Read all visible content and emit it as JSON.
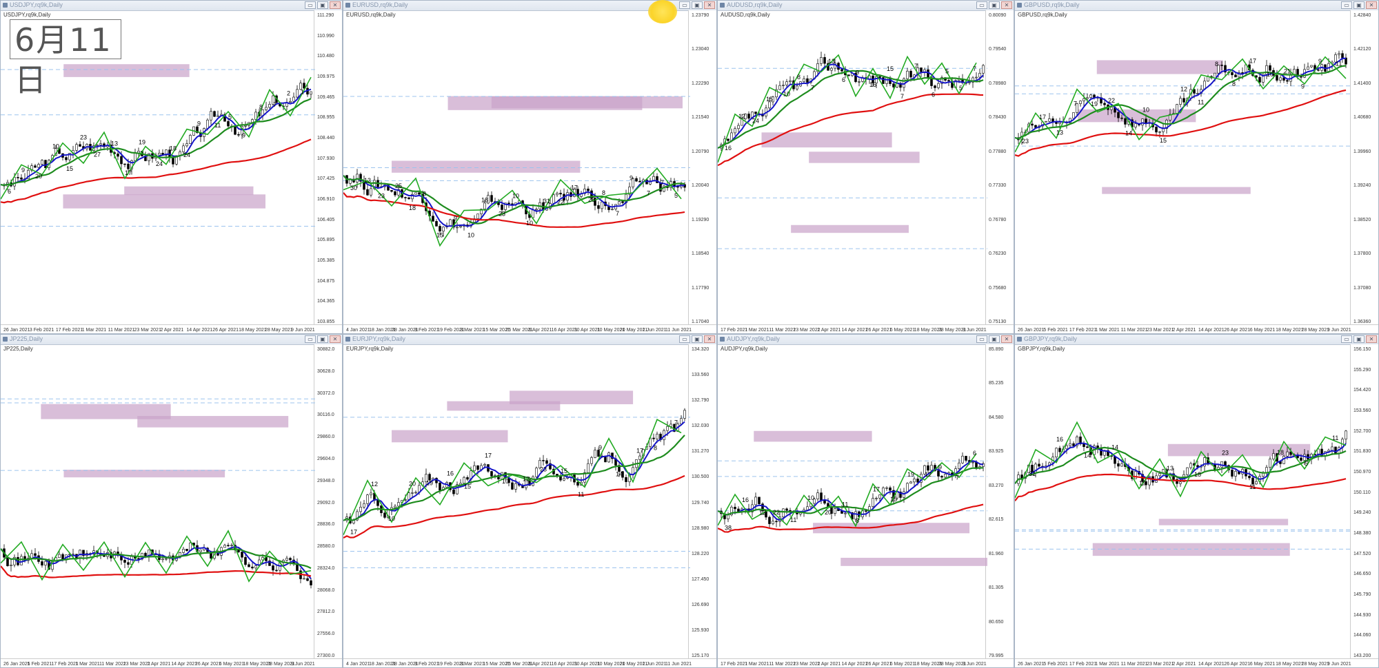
{
  "date_stamp": "6月11日",
  "colors": {
    "ma_fast": "#1414c8",
    "ma_mid": "#1e8c1e",
    "ma_slow": "#e01010",
    "zigzag": "#22aa22",
    "zone": "#c9a3c9",
    "bull": "#ffffff",
    "bear": "#000000"
  },
  "window_buttons": [
    "▭",
    "▣",
    "✕"
  ],
  "charts": [
    {
      "title": "USDJPY,rq9k,Daily",
      "symbol": "USDJPY,rq9k,Daily",
      "dates": [
        "26 Jan 2021",
        "3 Feb 2021",
        "17 Feb 2021",
        "1 Mar 2021",
        "11 Mar 2021",
        "23 Mar 2021",
        "2 Apr 2021",
        "14 Apr 2021",
        "26 Apr 2021",
        "18 May 2021",
        "28 May 2021",
        "9 Jun 2021"
      ],
      "prices": [
        "111.290",
        "110.990",
        "110.480",
        "109.975",
        "109.465",
        "108.955",
        "108.440",
        "107.930",
        "107.425",
        "106.910",
        "106.405",
        "105.895",
        "105.385",
        "104.875",
        "104.365",
        "103.855"
      ],
      "labels": [
        "6",
        "9",
        "20",
        "10",
        "15",
        "23",
        "27",
        "13",
        "17",
        "19",
        "24",
        "18",
        "24",
        "9",
        "11",
        "5",
        "9",
        "8",
        "7",
        "2",
        "1"
      ]
    },
    {
      "title": "EURUSD,rq9k,Daily",
      "symbol": "EURUSD,rq9k,Daily",
      "dates": [
        "4 Jan 2021",
        "18 Jan 2021",
        "28 Jan 2021",
        "9 Feb 2021",
        "19 Feb 2021",
        "3 Mar 2021",
        "15 Mar 2021",
        "25 Mar 2021",
        "6 Apr 2021",
        "16 Apr 2021",
        "30 Apr 2021",
        "10 May 2021",
        "20 May 2021",
        "1 Jun 2021",
        "11 Jun 2021"
      ],
      "prices": [
        "1.23790",
        "1.23040",
        "1.22290",
        "1.21540",
        "1.20790",
        "1.20040",
        "1.19290",
        "1.18540",
        "1.17790",
        "1.17040"
      ],
      "labels": [
        "30",
        "13",
        "23",
        "25",
        "18",
        "8",
        "15",
        "9",
        "10",
        "18",
        "23",
        "10",
        "10",
        "31",
        "22",
        "17",
        "26",
        "8",
        "7",
        "9",
        "7",
        "7",
        "5"
      ]
    },
    {
      "title": "AUDUSD,rq9k,Daily",
      "symbol": "AUDUSD,rq9k,Daily",
      "dates": [
        "17 Feb 2021",
        "1 Mar 2021",
        "11 Mar 2021",
        "23 Mar 2021",
        "2 Apr 2021",
        "14 Apr 2021",
        "26 Apr 2021",
        "6 May 2021",
        "18 May 2021",
        "28 May 2021",
        "9 Jun 2021"
      ],
      "prices": [
        "0.80090",
        "0.79540",
        "0.78980",
        "0.78430",
        "0.77880",
        "0.77330",
        "0.76780",
        "0.76230",
        "0.75680",
        "0.75130"
      ],
      "labels": [
        "16",
        "12",
        "24",
        "15",
        "10",
        "8",
        "7",
        "13",
        "6",
        "9",
        "16",
        "15",
        "7",
        "7",
        "6",
        "5",
        "5",
        "7"
      ]
    },
    {
      "title": "GBPUSD,rq9k,Daily",
      "symbol": "GBPUSD,rq9k,Daily",
      "dates": [
        "26 Jan 2021",
        "5 Feb 2021",
        "17 Feb 2021",
        "1 Mar 2021",
        "11 Mar 2021",
        "23 Mar 2021",
        "2 Apr 2021",
        "14 Apr 2021",
        "26 Apr 2021",
        "6 May 2021",
        "18 May 2021",
        "28 May 2021",
        "9 Jun 2021"
      ],
      "prices": [
        "1.42840",
        "1.42120",
        "1.41400",
        "1.40680",
        "1.39960",
        "1.39240",
        "1.38520",
        "1.37800",
        "1.37080",
        "1.36360"
      ],
      "labels": [
        "23",
        "17",
        "13",
        "7",
        "19",
        "22",
        "14",
        "10",
        "15",
        "12",
        "11",
        "8",
        "8",
        "17",
        "10",
        "21",
        "9",
        "9",
        "11"
      ]
    },
    {
      "title": "JP225,Daily",
      "symbol": "JP225,Daily",
      "dates": [
        "26 Jan 2021",
        "5 Feb 2021",
        "17 Feb 2021",
        "1 Mar 2021",
        "11 Mar 2021",
        "23 Mar 2021",
        "2 Apr 2021",
        "14 Apr 2021",
        "26 Apr 2021",
        "6 May 2021",
        "18 May 2021",
        "28 May 2021",
        "9 Jun 2021"
      ],
      "prices": [
        "30882.0",
        "30628.0",
        "30372.0",
        "30116.0",
        "29860.0",
        "29604.0",
        "29348.0",
        "29092.0",
        "28836.0",
        "28580.0",
        "28324.0",
        "28068.0",
        "27812.0",
        "27556.0",
        "27300.0"
      ],
      "labels": []
    },
    {
      "title": "EURJPY,rq9k,Daily",
      "symbol": "EURJPY,rq9k,Daily",
      "dates": [
        "4 Jan 2021",
        "18 Jan 2021",
        "28 Jan 2021",
        "9 Feb 2021",
        "19 Feb 2021",
        "3 Mar 2021",
        "15 Mar 2021",
        "25 Mar 2021",
        "6 Apr 2021",
        "16 Apr 2021",
        "30 Apr 2021",
        "10 May 2021",
        "20 May 2021",
        "1 Jun 2021",
        "11 Jun 2021"
      ],
      "prices": [
        "134.320",
        "133.560",
        "132.790",
        "132.030",
        "131.270",
        "130.500",
        "129.740",
        "128.980",
        "128.220",
        "127.450",
        "126.690",
        "125.930",
        "125.170"
      ],
      "labels": [
        "17",
        "12",
        "10",
        "20",
        "19",
        "16",
        "15",
        "17",
        "10",
        "12",
        "23",
        "15",
        "11",
        "9",
        "14",
        "17",
        "8",
        "7"
      ]
    },
    {
      "title": "AUDJPY,rq9k,Daily",
      "symbol": "AUDJPY,rq9k,Daily",
      "dates": [
        "17 Feb 2021",
        "1 Mar 2021",
        "11 Mar 2021",
        "23 Mar 2021",
        "2 Apr 2021",
        "14 Apr 2021",
        "26 Apr 2021",
        "6 May 2021",
        "18 May 2021",
        "28 May 2021",
        "9 Jun 2021"
      ],
      "prices": [
        "85.890",
        "85.235",
        "84.580",
        "83.925",
        "83.270",
        "82.615",
        "81.960",
        "81.305",
        "80.650",
        "79.995"
      ],
      "labels": [
        "38",
        "16",
        "12",
        "22",
        "11",
        "10",
        "20",
        "11",
        "8",
        "17",
        "15",
        "19",
        "12",
        "9",
        "7",
        "6"
      ]
    },
    {
      "title": "GBPJPY,rq9k,Daily",
      "symbol": "GBPJPY,rq9k,Daily",
      "dates": [
        "26 Jan 2021",
        "5 Feb 2021",
        "17 Feb 2021",
        "1 Mar 2021",
        "11 Mar 2021",
        "23 Mar 2021",
        "2 Apr 2021",
        "14 Apr 2021",
        "26 Apr 2021",
        "6 May 2021",
        "18 May 2021",
        "28 May 2021",
        "9 Jun 2021"
      ],
      "prices": [
        "156.150",
        "155.290",
        "154.420",
        "153.560",
        "152.700",
        "151.830",
        "150.970",
        "150.110",
        "149.240",
        "148.380",
        "147.520",
        "146.650",
        "145.790",
        "144.930",
        "144.060",
        "143.200"
      ],
      "labels": [
        "31",
        "16",
        "14",
        "14",
        "19",
        "13",
        "18",
        "23",
        "11",
        "18",
        "5",
        "11"
      ]
    }
  ]
}
